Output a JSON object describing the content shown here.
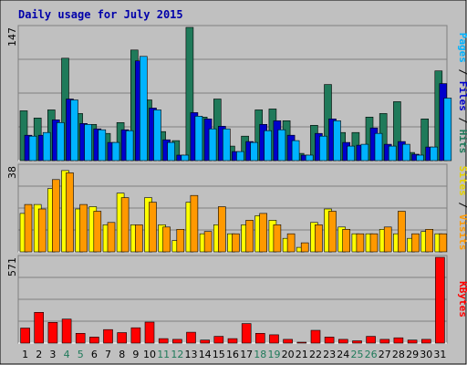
{
  "chart_data": {
    "type": "bar",
    "title": "Daily usage for July 2015",
    "categories": [
      "1",
      "2",
      "3",
      "4",
      "5",
      "6",
      "7",
      "8",
      "9",
      "10",
      "11",
      "12",
      "13",
      "14",
      "15",
      "16",
      "17",
      "18",
      "19",
      "20",
      "21",
      "22",
      "23",
      "24",
      "25",
      "26",
      "27",
      "28",
      "29",
      "30",
      "31"
    ],
    "weekend_days": [
      "4",
      "5",
      "11",
      "12",
      "18",
      "19",
      "25",
      "26"
    ],
    "panels": [
      {
        "ymax": "147",
        "legend": [
          "Pages",
          "Files",
          "Hits"
        ],
        "series": [
          {
            "name": "Hits",
            "color": "#1f7a5a",
            "values": [
              55,
              47,
              56,
              113,
              52,
              40,
              30,
              42,
              122,
              67,
              32,
              22,
              147,
              48,
              68,
              16,
              27,
              56,
              57,
              44,
              8,
              39,
              84,
              31,
              31,
              48,
              52,
              65,
              9,
              46,
              99
            ]
          },
          {
            "name": "Files",
            "color": "#0000cc",
            "values": [
              28,
              28,
              45,
              68,
              41,
              35,
              20,
              34,
              110,
              58,
              23,
              6,
              53,
              46,
              38,
              10,
              21,
              40,
              44,
              28,
              6,
              30,
              46,
              20,
              17,
              36,
              18,
              21,
              7,
              15,
              85
            ]
          },
          {
            "name": "Pages",
            "color": "#00b3ff",
            "values": [
              27,
              31,
              42,
              67,
              40,
              34,
              20,
              33,
              115,
              56,
              20,
              6,
              49,
              35,
              35,
              10,
              20,
              33,
              34,
              22,
              6,
              27,
              44,
              16,
              18,
              30,
              16,
              18,
              6,
              15,
              69
            ]
          }
        ]
      },
      {
        "ymax": "38",
        "legend": [
          "Sites",
          "Visits"
        ],
        "series": [
          {
            "name": "Sites",
            "color": "#ffff00",
            "values": [
              17,
              21,
              28,
              36,
              19,
              20,
              12,
              26,
              12,
              24,
              12,
              5,
              22,
              8,
              12,
              8,
              12,
              16,
              14,
              6,
              2,
              13,
              19,
              11,
              8,
              8,
              10,
              8,
              6,
              9,
              8
            ]
          },
          {
            "name": "Visits",
            "color": "#ff9900",
            "values": [
              21,
              19,
              32,
              35,
              21,
              18,
              13,
              24,
              12,
              22,
              11,
              10,
              25,
              9,
              20,
              8,
              14,
              17,
              12,
              8,
              4,
              12,
              18,
              10,
              8,
              8,
              11,
              18,
              8,
              10,
              8
            ]
          }
        ]
      },
      {
        "ymax": "571",
        "legend": [
          "KBytes"
        ],
        "series": [
          {
            "name": "KBytes",
            "color": "#ff0000",
            "values": [
              100,
              205,
              138,
              160,
              65,
              40,
              90,
              70,
              102,
              140,
              30,
              25,
              72,
              20,
              45,
              30,
              130,
              65,
              55,
              25,
              5,
              85,
              40,
              25,
              15,
              45,
              25,
              35,
              20,
              25,
              571
            ]
          }
        ]
      }
    ]
  }
}
